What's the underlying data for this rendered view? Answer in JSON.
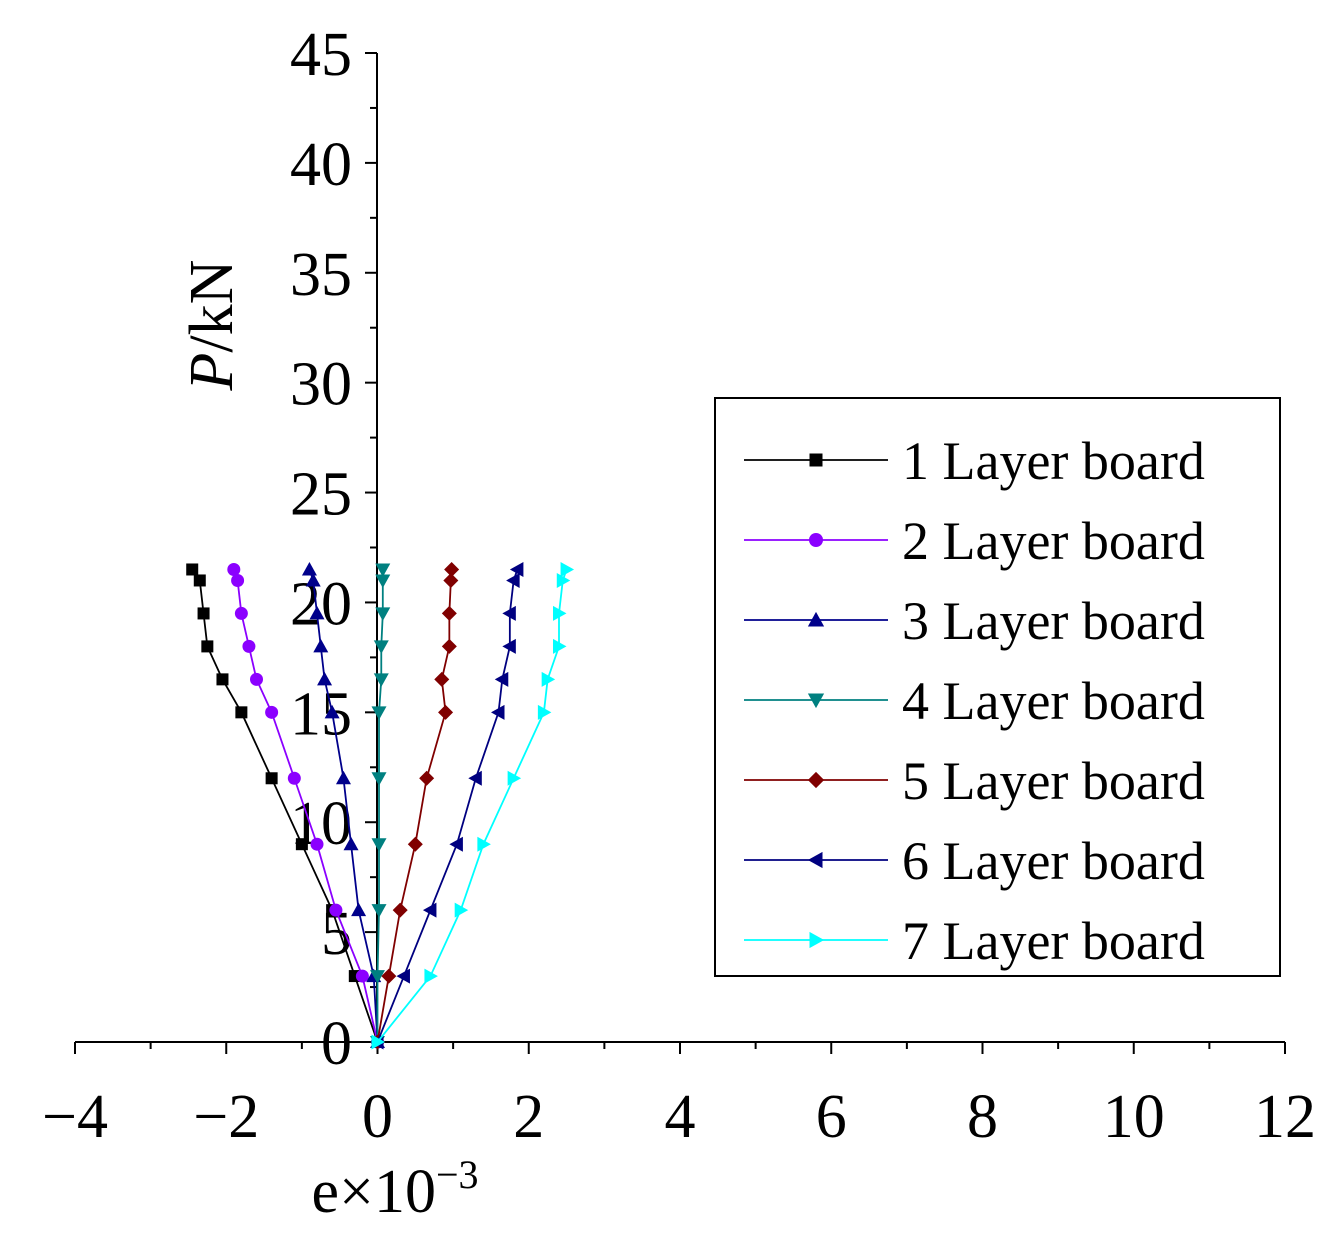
{
  "chart_data": {
    "type": "line",
    "title": "",
    "xlabel": {
      "base": "e×10",
      "exponent": "−3"
    },
    "ylabel": {
      "italic": "P",
      "rest": "/kN"
    },
    "xlim": [
      -4,
      12
    ],
    "ylim": [
      0,
      45
    ],
    "x_ticks": [
      -4,
      -2,
      0,
      2,
      4,
      6,
      8,
      10,
      12
    ],
    "x_tick_labels": [
      "−4",
      "−2",
      "0",
      "2",
      "4",
      "6",
      "8",
      "10",
      "12"
    ],
    "y_ticks": [
      0,
      5,
      10,
      15,
      20,
      25,
      30,
      35,
      40,
      45
    ],
    "y_tick_labels": [
      "0",
      "5",
      "10",
      "15",
      "20",
      "25",
      "30",
      "35",
      "40",
      "45"
    ],
    "grid": false,
    "legend_position": "right",
    "y": [
      0,
      3,
      6,
      9,
      12,
      15,
      16.5,
      18,
      19.5,
      21,
      21.5
    ],
    "series": [
      {
        "name": "1 Layer board",
        "color": "#000000",
        "marker": "square",
        "x": [
          0,
          -0.3,
          -0.6,
          -1.0,
          -1.4,
          -1.8,
          -2.05,
          -2.25,
          -2.3,
          -2.35,
          -2.45
        ]
      },
      {
        "name": "2 Layer board",
        "color": "#8B00FF",
        "marker": "circle",
        "x": [
          0,
          -0.2,
          -0.55,
          -0.8,
          -1.1,
          -1.4,
          -1.6,
          -1.7,
          -1.8,
          -1.85,
          -1.9
        ]
      },
      {
        "name": "3 Layer board",
        "color": "#00008B",
        "marker": "triangle-up",
        "x": [
          0,
          -0.05,
          -0.25,
          -0.35,
          -0.45,
          -0.6,
          -0.7,
          -0.75,
          -0.8,
          -0.85,
          -0.9
        ]
      },
      {
        "name": "4 Layer board",
        "color": "#008080",
        "marker": "triangle-down",
        "x": [
          0,
          0.0,
          0.02,
          0.02,
          0.02,
          0.02,
          0.05,
          0.05,
          0.07,
          0.07,
          0.07
        ]
      },
      {
        "name": "5 Layer board",
        "color": "#800000",
        "marker": "diamond",
        "x": [
          0,
          0.15,
          0.3,
          0.5,
          0.65,
          0.9,
          0.85,
          0.95,
          0.95,
          0.97,
          0.98
        ]
      },
      {
        "name": "6 Layer board",
        "color": "#000080",
        "marker": "triangle-left",
        "x": [
          0,
          0.35,
          0.7,
          1.05,
          1.3,
          1.6,
          1.65,
          1.75,
          1.75,
          1.8,
          1.85
        ]
      },
      {
        "name": "7 Layer board",
        "color": "#00FFFF",
        "marker": "triangle-right",
        "x": [
          0,
          0.7,
          1.1,
          1.4,
          1.8,
          2.2,
          2.25,
          2.4,
          2.4,
          2.45,
          2.5
        ]
      }
    ]
  }
}
